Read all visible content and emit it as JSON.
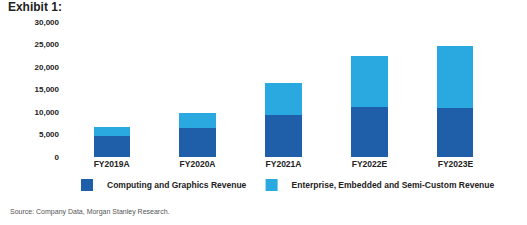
{
  "chart_data": {
    "type": "bar",
    "title": "Exhibit 1:",
    "categories": [
      "FY2019A",
      "FY2020A",
      "FY2021A",
      "FY2022E",
      "FY2023E"
    ],
    "series": [
      {
        "name": "Computing and Graphics Revenue",
        "color": "#1f5fa9",
        "values": [
          4700,
          6400,
          9300,
          11100,
          10900
        ]
      },
      {
        "name": "Enterprise, Embedded and Semi-Custom Revenue",
        "color": "#2aa9e0",
        "values": [
          2000,
          3400,
          7100,
          11300,
          13700
        ]
      }
    ],
    "stacked": true,
    "ylim": [
      0,
      30000
    ],
    "yticks": [
      0,
      {
        "value": 5000,
        "label": "5,000"
      },
      {
        "value": 10000,
        "label": "10,000"
      },
      {
        "value": 15000,
        "label": "15,000"
      },
      {
        "value": 20000,
        "label": "20,000"
      },
      {
        "value": 25000,
        "label": "25,000"
      },
      {
        "value": 30000,
        "label": "30,000"
      }
    ],
    "grid": false,
    "legend": "bottom",
    "annotations": [
      "Source: Company Data, Morgan Stanley Research."
    ]
  }
}
